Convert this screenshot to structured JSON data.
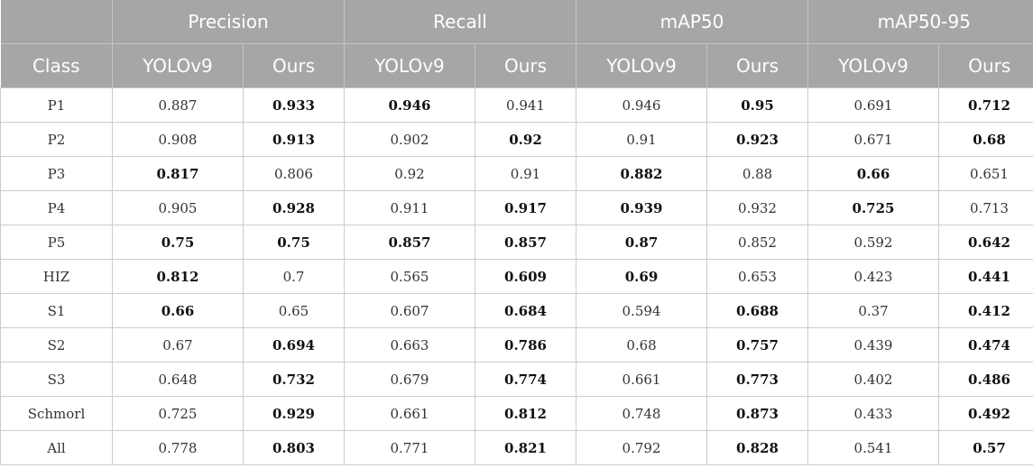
{
  "table": {
    "group_headers": [
      "Precision",
      "Recall",
      "mAP50",
      "mAP50-95"
    ],
    "class_header": "Class",
    "sub_headers": [
      "YOLOv9",
      "Ours"
    ],
    "rows": [
      {
        "label": "P1",
        "values": [
          "0.887",
          "0.933",
          "0.946",
          "0.941",
          "0.946",
          "0.95",
          "0.691",
          "0.712"
        ],
        "bold": [
          false,
          true,
          true,
          false,
          false,
          true,
          false,
          true
        ]
      },
      {
        "label": "P2",
        "values": [
          "0.908",
          "0.913",
          "0.902",
          "0.92",
          "0.91",
          "0.923",
          "0.671",
          "0.68"
        ],
        "bold": [
          false,
          true,
          false,
          true,
          false,
          true,
          false,
          true
        ]
      },
      {
        "label": "P3",
        "values": [
          "0.817",
          "0.806",
          "0.92",
          "0.91",
          "0.882",
          "0.88",
          "0.66",
          "0.651"
        ],
        "bold": [
          true,
          false,
          false,
          false,
          true,
          false,
          true,
          false
        ]
      },
      {
        "label": "P4",
        "values": [
          "0.905",
          "0.928",
          "0.911",
          "0.917",
          "0.939",
          "0.932",
          "0.725",
          "0.713"
        ],
        "bold": [
          false,
          true,
          false,
          true,
          true,
          false,
          true,
          false
        ]
      },
      {
        "label": "P5",
        "values": [
          "0.75",
          "0.75",
          "0.857",
          "0.857",
          "0.87",
          "0.852",
          "0.592",
          "0.642"
        ],
        "bold": [
          true,
          true,
          true,
          true,
          true,
          false,
          false,
          true
        ]
      },
      {
        "label": "HIZ",
        "values": [
          "0.812",
          "0.7",
          "0.565",
          "0.609",
          "0.69",
          "0.653",
          "0.423",
          "0.441"
        ],
        "bold": [
          true,
          false,
          false,
          true,
          true,
          false,
          false,
          true
        ]
      },
      {
        "label": "S1",
        "values": [
          "0.66",
          "0.65",
          "0.607",
          "0.684",
          "0.594",
          "0.688",
          "0.37",
          "0.412"
        ],
        "bold": [
          true,
          false,
          false,
          true,
          false,
          true,
          false,
          true
        ]
      },
      {
        "label": "S2",
        "values": [
          "0.67",
          "0.694",
          "0.663",
          "0.786",
          "0.68",
          "0.757",
          "0.439",
          "0.474"
        ],
        "bold": [
          false,
          true,
          false,
          true,
          false,
          true,
          false,
          true
        ]
      },
      {
        "label": "S3",
        "values": [
          "0.648",
          "0.732",
          "0.679",
          "0.774",
          "0.661",
          "0.773",
          "0.402",
          "0.486"
        ],
        "bold": [
          false,
          true,
          false,
          true,
          false,
          true,
          false,
          true
        ]
      },
      {
        "label": "Schmorl",
        "values": [
          "0.725",
          "0.929",
          "0.661",
          "0.812",
          "0.748",
          "0.873",
          "0.433",
          "0.492"
        ],
        "bold": [
          false,
          true,
          false,
          true,
          false,
          true,
          false,
          true
        ]
      },
      {
        "label": "All",
        "values": [
          "0.778",
          "0.803",
          "0.771",
          "0.821",
          "0.792",
          "0.828",
          "0.541",
          "0.57"
        ],
        "bold": [
          false,
          true,
          false,
          true,
          false,
          true,
          false,
          true
        ]
      }
    ]
  }
}
